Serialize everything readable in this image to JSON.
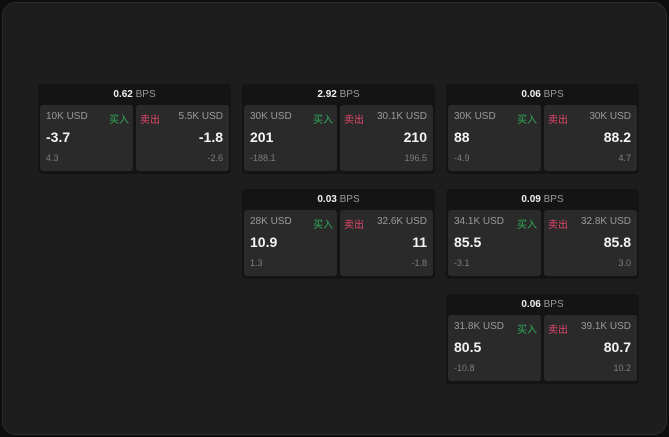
{
  "unit": "BPS",
  "buy_label": "买入",
  "sell_label": "卖出",
  "colors": {
    "buy": "#2fae5a",
    "sell": "#e0486b"
  },
  "cards": [
    {
      "spread": "0.62",
      "buy": {
        "size": "10K USD",
        "price": "-3.7",
        "change": "4.3"
      },
      "sell": {
        "size": "5.5K USD",
        "price": "-1.8",
        "change": "-2.6"
      }
    },
    {
      "spread": "2.92",
      "buy": {
        "size": "30K USD",
        "price": "201",
        "change": "-188.1"
      },
      "sell": {
        "size": "30.1K USD",
        "price": "210",
        "change": "196.5"
      }
    },
    {
      "spread": "0.06",
      "buy": {
        "size": "30K USD",
        "price": "88",
        "change": "-4.9"
      },
      "sell": {
        "size": "30K USD",
        "price": "88.2",
        "change": "4.7"
      }
    },
    {
      "spread": "0.03",
      "buy": {
        "size": "28K USD",
        "price": "10.9",
        "change": "1.3"
      },
      "sell": {
        "size": "32.6K USD",
        "price": "11",
        "change": "-1.8"
      }
    },
    {
      "spread": "0.09",
      "buy": {
        "size": "34.1K USD",
        "price": "85.5",
        "change": "-3.1"
      },
      "sell": {
        "size": "32.8K USD",
        "price": "85.8",
        "change": "3.0"
      }
    },
    {
      "spread": "0.06",
      "buy": {
        "size": "31.8K USD",
        "price": "80.5",
        "change": "-10.8"
      },
      "sell": {
        "size": "39.1K USD",
        "price": "80.7",
        "change": "10.2"
      }
    }
  ]
}
